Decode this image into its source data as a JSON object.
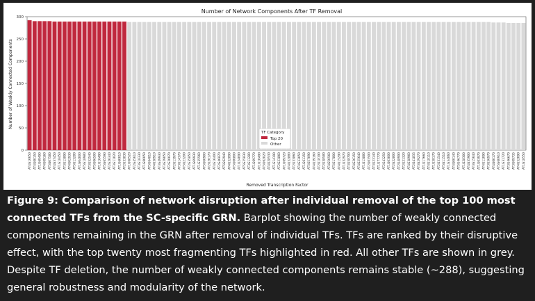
{
  "chart_data": {
    "type": "bar",
    "title": "Number of Network Components After TF Removal",
    "xlabel": "Removed Transcription Factor",
    "ylabel": "Number of Weakly Connected Components",
    "ylim": [
      0,
      300
    ],
    "yticks": [
      0,
      50,
      100,
      150,
      200,
      250,
      300
    ],
    "legend": {
      "title": "TF Category",
      "placement": "center-bottom",
      "entries": [
        {
          "label": "Top 20",
          "color": "#c0283e"
        },
        {
          "label": "Other",
          "color": "#d9d9d9"
        }
      ]
    },
    "colors": {
      "top20": "#c0283e",
      "other": "#d9d9d9"
    },
    "series": [
      {
        "name": "Top 20",
        "range": [
          0,
          20
        ]
      },
      {
        "name": "Other",
        "range": [
          20,
          100
        ]
      }
    ],
    "categories": [
      "AT4G16650",
      "AT4G00150",
      "AT1G69490",
      "AT4G09160",
      "AT5G07580",
      "AT4G37450",
      "AT1G18450",
      "AT3G13890",
      "AT4G02930",
      "AT5G13280",
      "AT1G64000",
      "AT5G18980",
      "AT3G52540",
      "AT5G06500",
      "AT1G16490",
      "AT5G65590",
      "AT2G26340",
      "AT3G11020",
      "AT1G60010",
      "AT2G33830",
      "AT1G68520",
      "AT2G45610",
      "AT3G18330",
      "AT1G80050",
      "AT5G64810",
      "AT4G38910",
      "AT3G49930",
      "AT3G29050",
      "AT2G20070",
      "AT2G13970",
      "AT3G14370",
      "AT5G23200",
      "AT2G35850",
      "AT1G69930",
      "AT1G35560",
      "AT5G60900",
      "AT2G26170",
      "AT4G16400",
      "AT2G46870",
      "AT5G62940",
      "AT4G32890",
      "AT5G06800",
      "AT1G24090",
      "AT5G25830",
      "AT3G11280",
      "AT1G69770",
      "AT1G10490",
      "AT5G62020",
      "AT4G28530",
      "AT1G14190",
      "AT2G23860",
      "AT1G69720",
      "AT4G32880",
      "AT2G33860",
      "AT4G33050",
      "AT1G61150",
      "AT5G57090",
      "AT4G39160",
      "AT2G18190",
      "AT2G38580",
      "AT4G50560",
      "AT5G17800",
      "AT4G15290",
      "AT1G32970",
      "AT3G58700",
      "AT4G26150",
      "AT4G25640",
      "AT1G13880",
      "AT2G03500",
      "AT3G23140",
      "AT1G77770",
      "AT2G43250",
      "AT1G03000",
      "AT2G22800",
      "AT2G48990",
      "AT2G21320",
      "AT4G38960",
      "AT2G41835",
      "AT3G29270",
      "AT1G17660",
      "AT4G18110",
      "AT1G38170",
      "AT2G31540",
      "AT5G11510",
      "AT1G34060",
      "AT4G00140",
      "AT5G46770",
      "AT1G28300",
      "AT4G35900",
      "AT3G15640",
      "AT1G03970",
      "AT4G11090",
      "AT3G56970",
      "AT4G00170",
      "AT5G60910",
      "AT1G31720",
      "AT3G46670",
      "AT3G09735",
      "AT4G52090",
      "AT1G18550"
    ],
    "values": [
      292,
      290,
      290,
      290,
      290,
      289,
      289,
      289,
      289,
      289,
      289,
      289,
      289,
      289,
      289,
      289,
      289,
      289,
      289,
      289,
      288,
      288,
      288,
      288,
      288,
      288,
      288,
      288,
      288,
      288,
      288,
      288,
      288,
      288,
      288,
      288,
      288,
      288,
      288,
      288,
      288,
      288,
      288,
      288,
      288,
      288,
      288,
      288,
      288,
      288,
      288,
      288,
      288,
      288,
      288,
      288,
      288,
      288,
      288,
      288,
      288,
      288,
      288,
      288,
      288,
      288,
      288,
      288,
      288,
      288,
      288,
      288,
      288,
      288,
      288,
      288,
      288,
      288,
      288,
      288,
      288,
      288,
      288,
      288,
      288,
      288,
      288,
      288,
      288,
      288,
      288,
      288,
      288,
      287,
      287,
      287,
      286,
      286,
      286,
      286
    ]
  },
  "caption": {
    "bold": "Figure 9: Comparison of network disruption after individual removal of the top 100 most connected TFs from the SC-specific GRN.",
    "text": " Barplot showing the number of weakly connected components remaining in the GRN after removal of individual TFs. TFs are ranked by their disruptive effect, with the top twenty most fragmenting TFs highlighted in red. All other TFs are shown in grey. Despite TF deletion, the number of weakly connected components remains stable (~288), suggesting general robustness and modularity of the network."
  }
}
